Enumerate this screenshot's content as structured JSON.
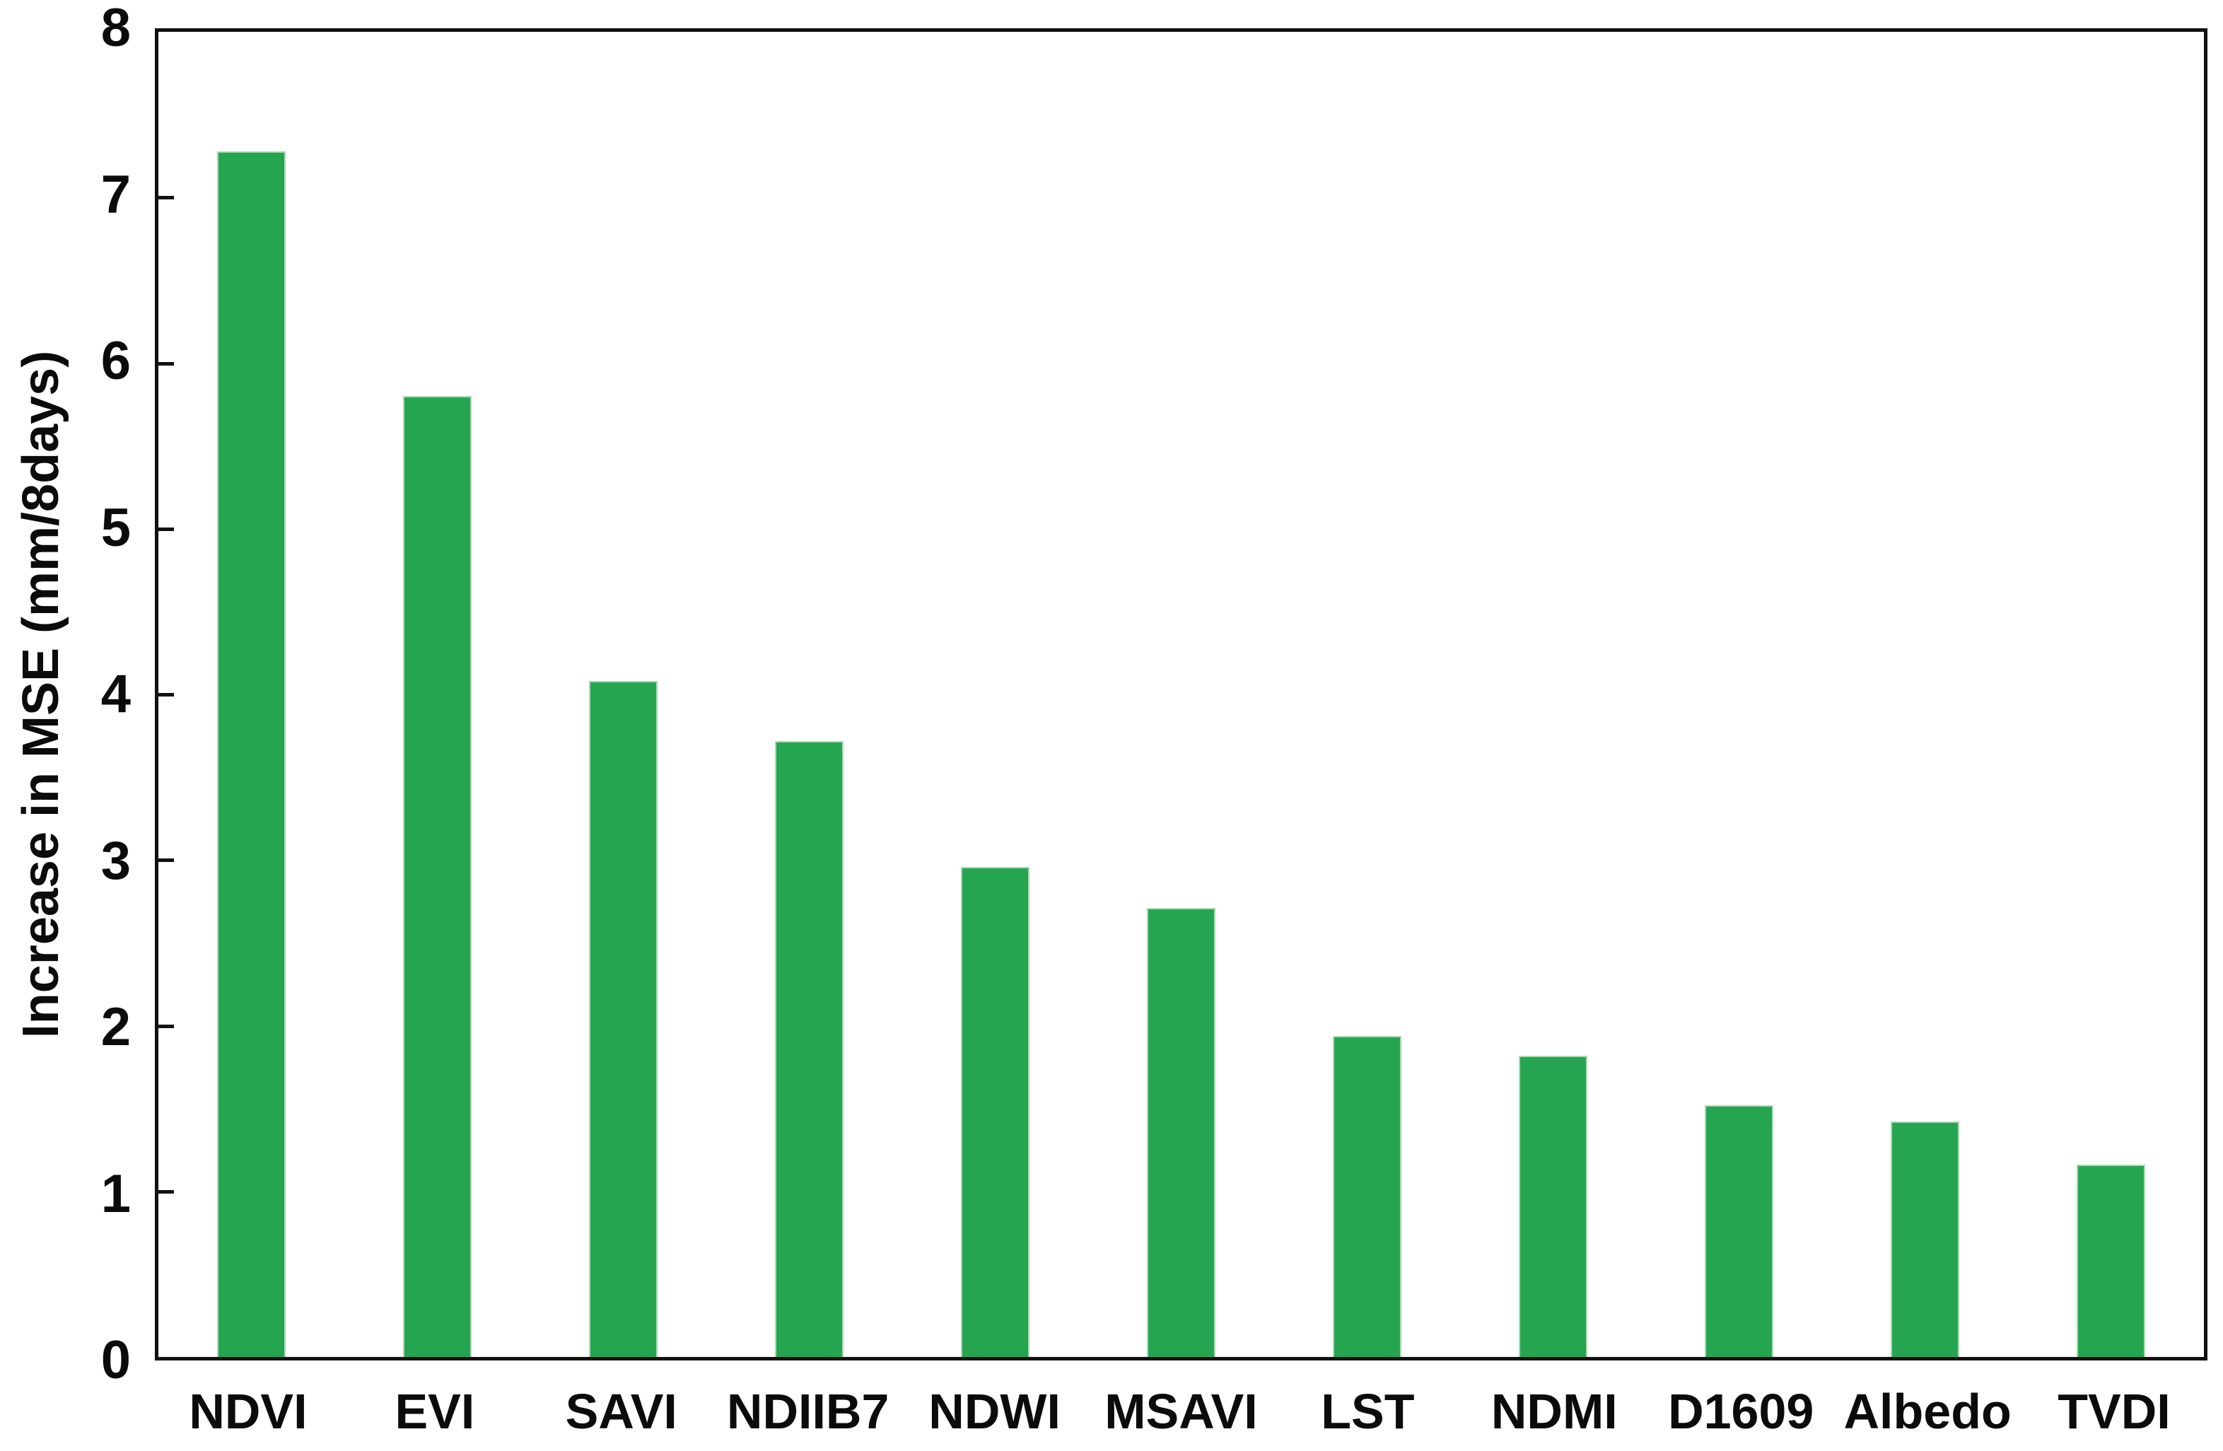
{
  "figure": {
    "background_color": "#ffffff"
  },
  "chart_data": {
    "type": "bar",
    "title": "",
    "xlabel": "",
    "ylabel": "Increase in MSE (mm/8days)",
    "categories": [
      "NDVI",
      "EVI",
      "SAVI",
      "NDIIB7",
      "NDWI",
      "MSAVI",
      "LST",
      "NDMI",
      "D1609",
      "Albedo",
      "TVDI"
    ],
    "values": [
      7.28,
      5.8,
      4.08,
      3.72,
      2.96,
      2.71,
      1.94,
      1.82,
      1.52,
      1.42,
      1.16
    ],
    "ylim": [
      0,
      8
    ],
    "yticks": [
      0,
      1,
      2,
      3,
      4,
      5,
      6,
      7,
      8
    ],
    "grid": false,
    "legend": "none",
    "bar_color": "#26a551",
    "bar_edge_color": "#a9d9b2",
    "axis_color": "#111111",
    "label_color": "#0b0b0b"
  }
}
